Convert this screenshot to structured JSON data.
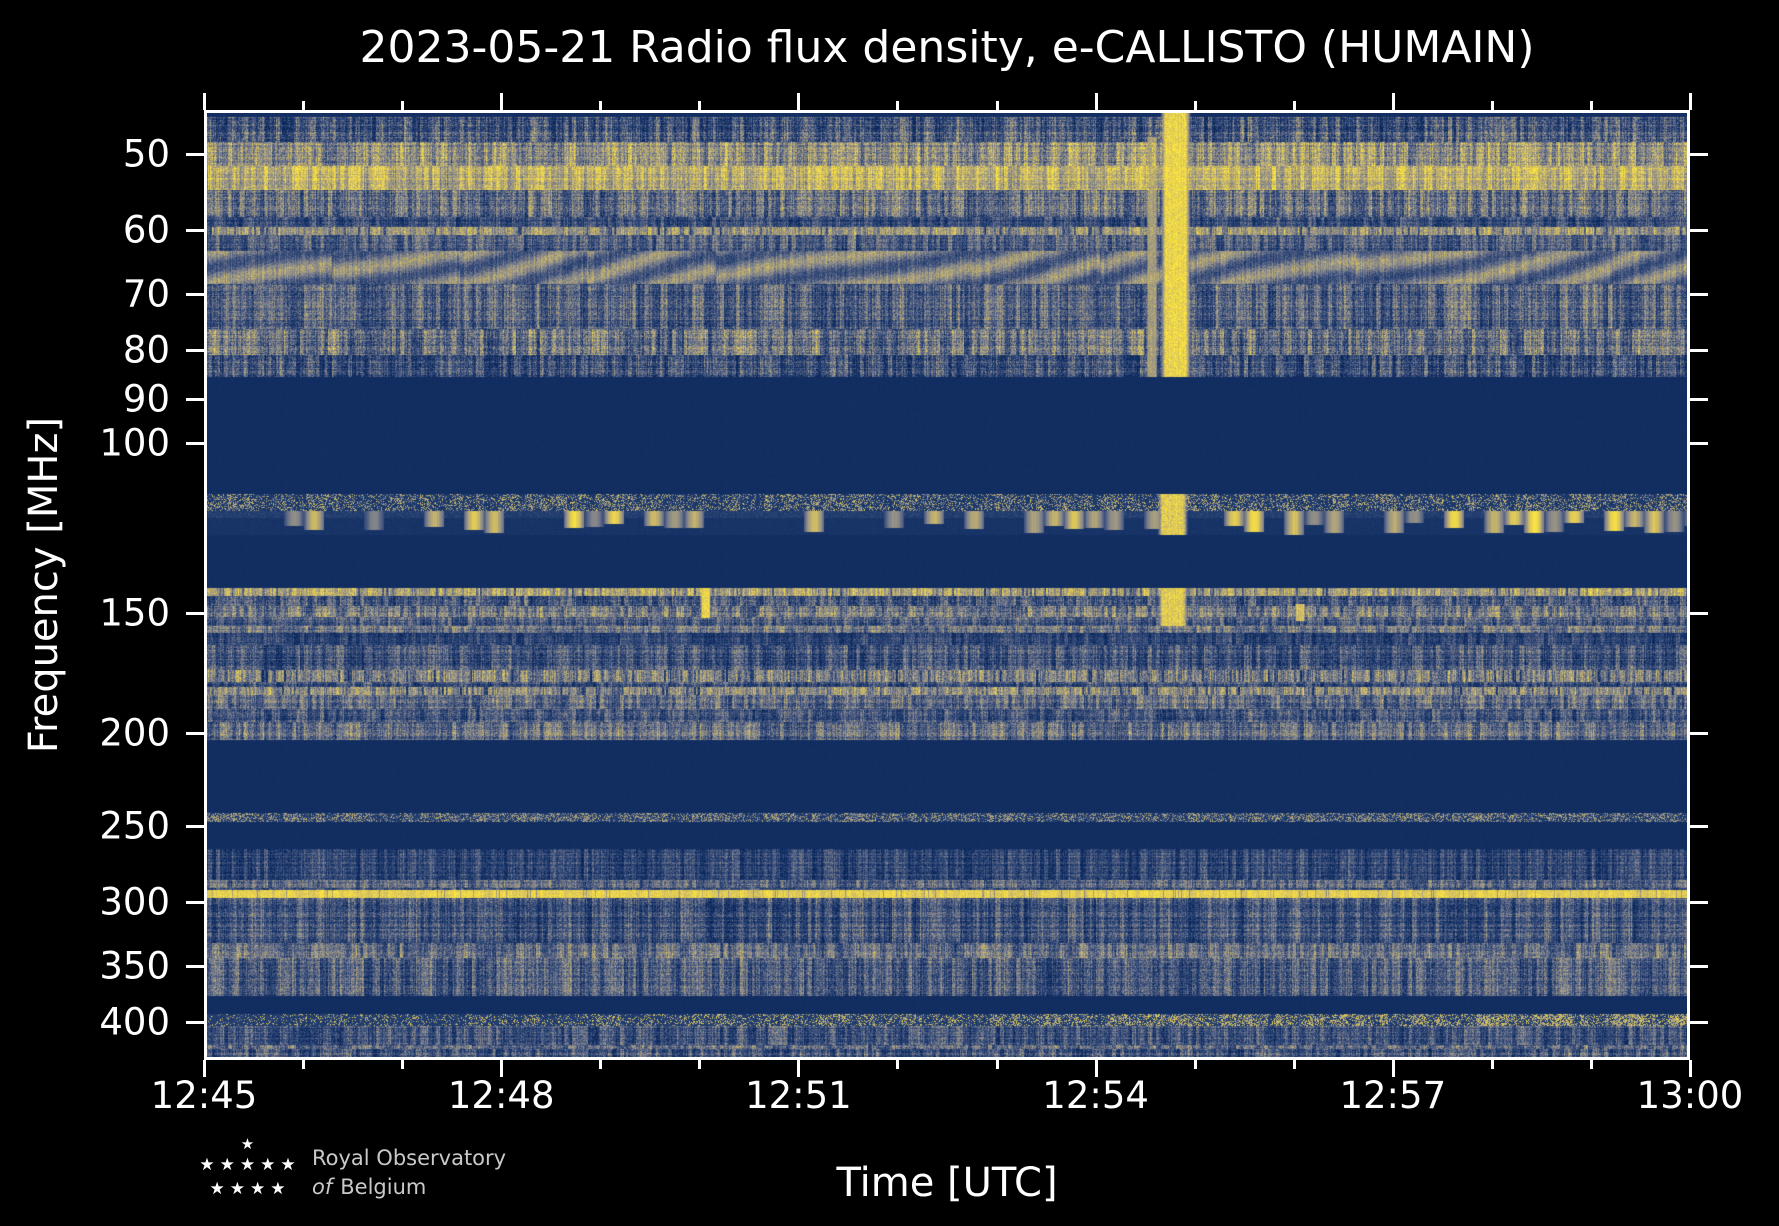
{
  "title": "2023-05-21 Radio flux density, e-CALLISTO (HUMAIN)",
  "axes": {
    "x_label": "Time [UTC]",
    "y_label": "Frequency [MHz]",
    "x_ticks_major": [
      {
        "minute": 0,
        "label": "12:45"
      },
      {
        "minute": 3,
        "label": "12:48"
      },
      {
        "minute": 6,
        "label": "12:51"
      },
      {
        "minute": 9,
        "label": "12:54"
      },
      {
        "minute": 12,
        "label": "12:57"
      },
      {
        "minute": 15,
        "label": "13:00"
      }
    ],
    "x_ticks_minor_minutes": [
      1,
      2,
      4,
      5,
      7,
      8,
      10,
      11,
      13,
      14
    ],
    "y_ticks_mhz": [
      50,
      60,
      70,
      80,
      90,
      100,
      150,
      200,
      250,
      300,
      350,
      400
    ]
  },
  "logo": {
    "star_rows": [
      "★",
      "★★★★★",
      "★★★★"
    ],
    "line1": "Royal Observatory",
    "line2_italic": "of",
    "line2_rest": "Belgium"
  },
  "colors": {
    "background": "#000000",
    "text": "#ffffff",
    "frame": "#ffffff",
    "logo_text": "#c9c9c9"
  },
  "chart_data": {
    "type": "heatmap",
    "title": "2023-05-21 Radio flux density, e-CALLISTO (HUMAIN)",
    "xlabel": "Time [UTC]",
    "ylabel": "Frequency [MHz]",
    "x_start": "12:45",
    "x_end": "13:00",
    "duration_minutes": 15,
    "freq_min_mhz": 45,
    "freq_max_mhz": 438,
    "y_scale": "log",
    "legend": "none",
    "grid": false,
    "palette_stops": [
      [
        0.0,
        "#0a2458"
      ],
      [
        0.15,
        "#1d3a6d"
      ],
      [
        0.33,
        "#47577f"
      ],
      [
        0.5,
        "#7d818c"
      ],
      [
        0.66,
        "#a89e7e"
      ],
      [
        0.82,
        "#d9c45d"
      ],
      [
        1.0,
        "#ffe83d"
      ]
    ],
    "bands": [
      {
        "f1": 45.0,
        "f2": 45.8,
        "style": "solid",
        "base": 0.07,
        "desc": "dark strip at top edge"
      },
      {
        "f1": 45.8,
        "f2": 48.6,
        "style": "noise",
        "base": 0.34,
        "amp": 0.38,
        "desc": "blue-gray noise"
      },
      {
        "f1": 48.6,
        "f2": 51.5,
        "style": "noise",
        "base": 0.6,
        "amp": 0.36,
        "desc": "yellow noise band ~49-51 MHz"
      },
      {
        "f1": 51.5,
        "f2": 54.5,
        "style": "noise",
        "base": 0.78,
        "amp": 0.3,
        "desc": "brightest yellow band ~52-54 MHz"
      },
      {
        "f1": 54.5,
        "f2": 58.2,
        "style": "noise",
        "base": 0.42,
        "amp": 0.36,
        "desc": "mixed noise"
      },
      {
        "f1": 58.2,
        "f2": 59.6,
        "style": "noise",
        "base": 0.24,
        "amp": 0.28,
        "desc": "darker lane"
      },
      {
        "f1": 59.6,
        "f2": 60.7,
        "style": "line",
        "base": 0.6,
        "amp": 0.34,
        "desc": "RFI line at 60 MHz"
      },
      {
        "f1": 60.7,
        "f2": 63.1,
        "style": "noise",
        "base": 0.34,
        "amp": 0.3,
        "desc": "blue noise"
      },
      {
        "f1": 63.1,
        "f2": 68.3,
        "style": "wavy",
        "base": 0.4,
        "amp": 0.45,
        "desc": "wavy gray fringes 63-68 MHz"
      },
      {
        "f1": 68.3,
        "f2": 76.0,
        "style": "noise",
        "base": 0.37,
        "amp": 0.34,
        "desc": "blue-gray noise"
      },
      {
        "f1": 76.0,
        "f2": 81.0,
        "style": "noise",
        "base": 0.44,
        "amp": 0.38,
        "desc": "noise with bright flecks ~80 MHz"
      },
      {
        "f1": 81.0,
        "f2": 85.3,
        "style": "noise",
        "base": 0.3,
        "amp": 0.36,
        "desc": "dense darker speckle"
      },
      {
        "f1": 85.3,
        "f2": 112.8,
        "style": "solid",
        "base": 0.06,
        "desc": "quiet band (no data)"
      },
      {
        "f1": 112.8,
        "f2": 117.7,
        "style": "speckle",
        "base": 0.1,
        "prob": 0.4,
        "bright": 0.48,
        "desc": "gray speckle lane"
      },
      {
        "f1": 117.7,
        "f2": 124.6,
        "style": "blobs",
        "base": 0.09,
        "desc": "intermittent bright yellow blobs (airband RFI)"
      },
      {
        "f1": 124.6,
        "f2": 141.3,
        "style": "solid",
        "base": 0.06,
        "desc": "quiet band"
      },
      {
        "f1": 141.3,
        "f2": 144.3,
        "style": "line",
        "base": 0.66,
        "amp": 0.34,
        "desc": "bright RFI line ~142 MHz"
      },
      {
        "f1": 144.3,
        "f2": 147.7,
        "style": "noise",
        "base": 0.32,
        "amp": 0.33,
        "desc": "blue noise"
      },
      {
        "f1": 147.7,
        "f2": 151.6,
        "style": "noise",
        "base": 0.47,
        "amp": 0.34,
        "desc": "gray lane ~150 MHz"
      },
      {
        "f1": 151.6,
        "f2": 154.8,
        "style": "noise",
        "base": 0.34,
        "amp": 0.3,
        "desc": "blue noise"
      },
      {
        "f1": 154.8,
        "f2": 157.4,
        "style": "noise",
        "base": 0.47,
        "amp": 0.3,
        "desc": "gray line ~156 MHz"
      },
      {
        "f1": 157.4,
        "f2": 162.2,
        "style": "noise",
        "base": 0.2,
        "amp": 0.24,
        "desc": "dark lane"
      },
      {
        "f1": 162.2,
        "f2": 172.0,
        "style": "noise",
        "base": 0.32,
        "amp": 0.32,
        "desc": "blue noise"
      },
      {
        "f1": 172.0,
        "f2": 177.0,
        "style": "line",
        "base": 0.5,
        "amp": 0.4,
        "desc": "speckled yellow-gray line ~174 MHz"
      },
      {
        "f1": 177.0,
        "f2": 179.4,
        "style": "noise",
        "base": 0.3,
        "amp": 0.3,
        "desc": "blue noise"
      },
      {
        "f1": 179.4,
        "f2": 182.8,
        "style": "line",
        "base": 0.56,
        "amp": 0.36,
        "desc": "speckled yellow line ~181 MHz"
      },
      {
        "f1": 182.8,
        "f2": 188.8,
        "style": "noise",
        "base": 0.42,
        "amp": 0.32,
        "desc": "gray noise"
      },
      {
        "f1": 188.8,
        "f2": 195.0,
        "style": "noise",
        "base": 0.31,
        "amp": 0.3,
        "desc": "blue noise"
      },
      {
        "f1": 195.0,
        "f2": 203.7,
        "style": "noise",
        "base": 0.43,
        "amp": 0.33,
        "desc": "gray lane ~200 MHz"
      },
      {
        "f1": 203.7,
        "f2": 242.3,
        "style": "solid",
        "base": 0.06,
        "desc": "quiet band"
      },
      {
        "f1": 242.3,
        "f2": 247.4,
        "style": "speckle",
        "base": 0.12,
        "prob": 0.5,
        "bright": 0.42,
        "desc": "thin speckle lane ~245 MHz"
      },
      {
        "f1": 247.4,
        "f2": 264.0,
        "style": "solid",
        "base": 0.06,
        "desc": "quiet band"
      },
      {
        "f1": 264.0,
        "f2": 284.6,
        "style": "noise",
        "base": 0.24,
        "amp": 0.28,
        "desc": "sparse blue noise"
      },
      {
        "f1": 284.6,
        "f2": 290.0,
        "style": "noise",
        "base": 0.42,
        "amp": 0.3,
        "desc": "gray line ~287 MHz"
      },
      {
        "f1": 290.0,
        "f2": 291.3,
        "style": "noise",
        "base": 0.26,
        "amp": 0.26,
        "desc": "blue gap"
      },
      {
        "f1": 291.3,
        "f2": 296.8,
        "style": "brightline",
        "base": 0.82,
        "amp": 0.2,
        "desc": "continuous bright yellow line ~300 MHz"
      },
      {
        "f1": 296.8,
        "f2": 330.7,
        "style": "noise",
        "base": 0.31,
        "amp": 0.32,
        "desc": "blue noise"
      },
      {
        "f1": 330.7,
        "f2": 343.4,
        "style": "noise",
        "base": 0.45,
        "amp": 0.33,
        "desc": "gray lane ~335 MHz"
      },
      {
        "f1": 343.4,
        "f2": 376.0,
        "style": "noise",
        "base": 0.34,
        "amp": 0.34,
        "desc": "noise with thin lines"
      },
      {
        "f1": 376.0,
        "f2": 392.6,
        "style": "solid",
        "base": 0.06,
        "desc": "quiet band"
      },
      {
        "f1": 392.6,
        "f2": 403.7,
        "style": "speckle",
        "base": 0.13,
        "prob": 0.5,
        "bright": 0.55,
        "rb": true,
        "desc": "speckle lane ~400 MHz, brighter to the right"
      },
      {
        "f1": 403.7,
        "f2": 422.7,
        "style": "noise",
        "base": 0.31,
        "amp": 0.31,
        "desc": "blue noise"
      },
      {
        "f1": 422.7,
        "f2": 426.6,
        "style": "noise",
        "base": 0.44,
        "amp": 0.31,
        "desc": "gray line ~425 MHz"
      },
      {
        "f1": 426.6,
        "f2": 438.0,
        "style": "noise",
        "base": 0.31,
        "amp": 0.33,
        "desc": "blue noise to bottom edge"
      }
    ],
    "events": [
      {
        "t0": 9.5,
        "t1": 9.63,
        "f1": 48,
        "f2": 85.3,
        "intensity": 0.72,
        "skip_solid": false,
        "utc": "12:54:30",
        "desc": "precursor streak"
      },
      {
        "t0": 9.63,
        "t1": 9.98,
        "f1": 45,
        "f2": 85.3,
        "intensity": 1.0,
        "skip_solid": false,
        "utc": "12:54:45",
        "desc": "strong broadband burst 45-85 MHz"
      },
      {
        "t0": 9.6,
        "t1": 9.95,
        "f1": 112.8,
        "f2": 155.0,
        "intensity": 0.95,
        "skip_solid": true,
        "utc": "12:54:45",
        "desc": "burst extension 115-155 MHz"
      },
      {
        "t0": 5.0,
        "t1": 5.12,
        "f1": 141.3,
        "f2": 152.0,
        "intensity": 1.0,
        "skip_solid": true,
        "utc": "12:50:02",
        "desc": "short burst at 150 MHz"
      },
      {
        "t0": 11.0,
        "t1": 11.12,
        "f1": 147.0,
        "f2": 153.0,
        "intensity": 0.9,
        "skip_solid": true,
        "utc": "12:56:02",
        "desc": "short blip at 150 MHz"
      }
    ]
  }
}
